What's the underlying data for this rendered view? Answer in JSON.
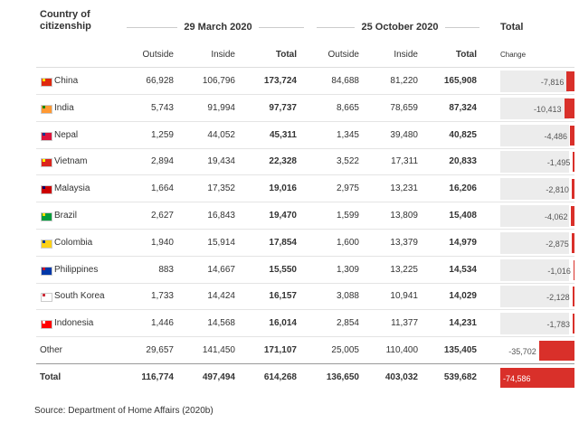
{
  "header": {
    "country": "Country of citizenship",
    "periods": [
      "29 March 2020",
      "25 October 2020",
      "Total"
    ]
  },
  "columns": [
    "Outside",
    "Inside",
    "Total",
    "Outside",
    "Inside",
    "Total",
    "Change"
  ],
  "rows": [
    {
      "name": "China",
      "cells": [
        "66,928",
        "106,796",
        "173,724",
        "84,688",
        "81,220",
        "165,908"
      ],
      "change": {
        "value": -7816,
        "label": "-7,816"
      }
    },
    {
      "name": "India",
      "cells": [
        "5,743",
        "91,994",
        "97,737",
        "8,665",
        "78,659",
        "87,324"
      ],
      "change": {
        "value": -10413,
        "label": "-10,413"
      }
    },
    {
      "name": "Nepal",
      "cells": [
        "1,259",
        "44,052",
        "45,311",
        "1,345",
        "39,480",
        "40,825"
      ],
      "change": {
        "value": -4486,
        "label": "-4,486"
      }
    },
    {
      "name": "Vietnam",
      "cells": [
        "2,894",
        "19,434",
        "22,328",
        "3,522",
        "17,311",
        "20,833"
      ],
      "change": {
        "value": -1495,
        "label": "-1,495"
      }
    },
    {
      "name": "Malaysia",
      "cells": [
        "1,664",
        "17,352",
        "19,016",
        "2,975",
        "13,231",
        "16,206"
      ],
      "change": {
        "value": -2810,
        "label": "-2,810"
      }
    },
    {
      "name": "Brazil",
      "cells": [
        "2,627",
        "16,843",
        "19,470",
        "1,599",
        "13,809",
        "15,408"
      ],
      "change": {
        "value": -4062,
        "label": "-4,062"
      }
    },
    {
      "name": "Colombia",
      "cells": [
        "1,940",
        "15,914",
        "17,854",
        "1,600",
        "13,379",
        "14,979"
      ],
      "change": {
        "value": -2875,
        "label": "-2,875"
      }
    },
    {
      "name": "Philippines",
      "cells": [
        "883",
        "14,667",
        "15,550",
        "1,309",
        "13,225",
        "14,534"
      ],
      "change": {
        "value": -1016,
        "label": "-1,016"
      }
    },
    {
      "name": "South Korea",
      "cells": [
        "1,733",
        "14,424",
        "16,157",
        "3,088",
        "10,941",
        "14,029"
      ],
      "change": {
        "value": -2128,
        "label": "-2,128"
      }
    },
    {
      "name": "Indonesia",
      "cells": [
        "1,446",
        "14,568",
        "16,014",
        "2,854",
        "11,377",
        "14,231"
      ],
      "change": {
        "value": -1783,
        "label": "-1,783"
      }
    },
    {
      "name": "Other",
      "cells": [
        "29,657",
        "141,450",
        "171,107",
        "25,005",
        "110,400",
        "135,405"
      ],
      "change": {
        "value": -35702,
        "label": "-35,702"
      }
    },
    {
      "name": "Total",
      "cells": [
        "116,774",
        "497,494",
        "614,268",
        "136,650",
        "403,032",
        "539,682"
      ],
      "change": {
        "value": -74586,
        "label": "-74,586"
      }
    }
  ],
  "source": "Source: Department of Home Affairs (2020b)"
}
